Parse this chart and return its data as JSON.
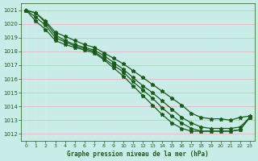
{
  "title": "Graphe pression niveau de la mer (hPa)",
  "bg_color": "#c8ede8",
  "grid_color_major_h": "#e8b0b0",
  "grid_color_minor": "#dde8e5",
  "grid_color_v": "#dde8e5",
  "line_color": "#1a5c1a",
  "xlim": [
    -0.5,
    23.5
  ],
  "ylim": [
    1011.5,
    1021.5
  ],
  "yticks": [
    1012,
    1013,
    1014,
    1015,
    1016,
    1017,
    1018,
    1019,
    1020,
    1021
  ],
  "xticks": [
    0,
    1,
    2,
    3,
    4,
    5,
    6,
    7,
    8,
    9,
    10,
    11,
    12,
    13,
    14,
    15,
    16,
    17,
    18,
    19,
    20,
    21,
    22,
    23
  ],
  "series": [
    [
      1021.0,
      1020.8,
      1020.2,
      1019.4,
      1019.1,
      1018.8,
      1018.5,
      1018.3,
      1017.9,
      1017.5,
      1017.1,
      1016.6,
      1016.1,
      1015.6,
      1015.1,
      1014.6,
      1014.1,
      1013.5,
      1013.2,
      1013.1,
      1013.1,
      1013.0,
      1013.2,
      1013.3
    ],
    [
      1021.0,
      1020.8,
      1020.1,
      1019.2,
      1018.8,
      1018.5,
      1018.3,
      1018.1,
      1017.7,
      1017.2,
      1016.7,
      1016.1,
      1015.5,
      1015.0,
      1014.4,
      1013.8,
      1013.2,
      1012.8,
      1012.5,
      1012.4,
      1012.4,
      1012.4,
      1012.5,
      1013.2
    ],
    [
      1021.0,
      1020.5,
      1019.9,
      1019.0,
      1018.7,
      1018.4,
      1018.2,
      1018.0,
      1017.5,
      1017.0,
      1016.5,
      1015.8,
      1015.2,
      1014.6,
      1013.9,
      1013.3,
      1012.8,
      1012.4,
      1012.2,
      1012.2,
      1012.2,
      1012.2,
      1012.3,
      1013.2
    ],
    [
      1021.0,
      1020.2,
      1019.6,
      1018.8,
      1018.5,
      1018.3,
      1018.1,
      1017.9,
      1017.4,
      1016.8,
      1016.2,
      1015.5,
      1014.8,
      1014.1,
      1013.4,
      1012.8,
      1012.4,
      1012.2,
      1012.2,
      1012.2,
      1012.2,
      1012.2,
      1012.3,
      1013.2
    ]
  ]
}
